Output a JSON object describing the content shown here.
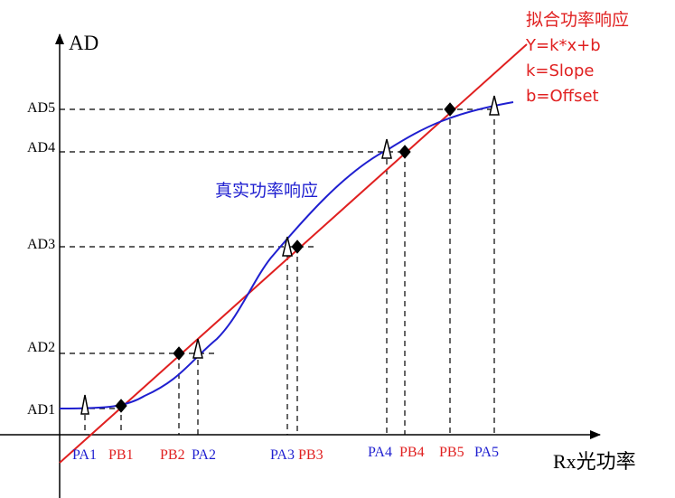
{
  "axes": {
    "y_label": "AD",
    "x_label": "Rx光功率"
  },
  "ad_levels": [
    "AD1",
    "AD2",
    "AD3",
    "AD4",
    "AD5"
  ],
  "pa_labels": [
    "PA1",
    "PA2",
    "PA3",
    "PA4",
    "PA5"
  ],
  "pb_labels": [
    "PB1",
    "PB2",
    "PB3",
    "PB4",
    "PB5"
  ],
  "real_curve": {
    "label": "真实功率响应",
    "color": "#1f1fd0"
  },
  "fitted_line": {
    "color": "#e02020",
    "title": "拟合功率响应",
    "equation": "Y=k*x+b",
    "k_def": "k=Slope",
    "b_def": "b=Offset"
  },
  "colors": {
    "pa_label": "#1f1fd0",
    "pb_label": "#e02020",
    "axis": "#000000"
  },
  "markers": {
    "pa": "open-triangle",
    "pb": "filled-diamond"
  }
}
